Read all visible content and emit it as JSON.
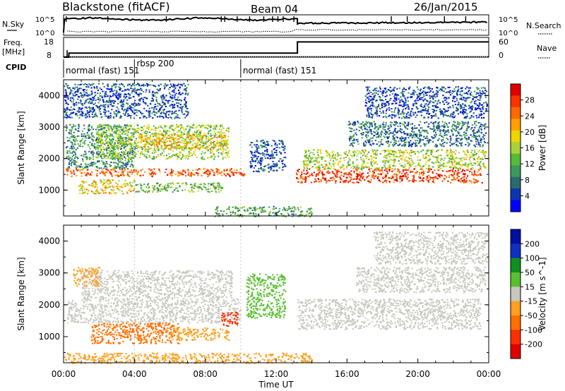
{
  "header": {
    "station": "Blackstone (fitACF)",
    "beam": "Beam 04",
    "date": "26/Jan/2015"
  },
  "panels": {
    "nsky": {
      "label": "N.Sky",
      "ticks_left": [
        "10^5",
        "10^0"
      ],
      "ticks_right": [
        "10^5",
        "10^0"
      ],
      "right_label": "N.Search"
    },
    "freq": {
      "label": "Freq.",
      "unit": "[MHz]",
      "ticks_left": [
        "18",
        "8"
      ],
      "ticks_right": [
        "60",
        "0"
      ],
      "right_label": "Nave",
      "freq_segments": [
        {
          "t0": 0.0,
          "t1": 0.3,
          "mhz": 8
        },
        {
          "t0": 0.3,
          "t1": 13.2,
          "mhz": 10.4
        },
        {
          "t0": 13.2,
          "t1": 24.0,
          "mhz": 17.0
        }
      ]
    },
    "cpid": {
      "label": "CPID",
      "segments": [
        {
          "start": 0.0,
          "label": "normal (fast) 151"
        },
        {
          "start": 4.0,
          "label": "rbsp 200"
        },
        {
          "start": 10.0,
          "label": "normal (fast) 151"
        }
      ]
    }
  },
  "time_axis": {
    "title": "Time UT",
    "ticks": [
      "00:00",
      "04:00",
      "08:00",
      "12:00",
      "16:00",
      "20:00",
      "00:00"
    ],
    "range_hours": [
      0,
      24
    ]
  },
  "chart_data": [
    {
      "type": "heatmap",
      "title": "",
      "xlabel": "Time UT",
      "ylabel": "Slant Range [km]",
      "xlim": [
        0,
        24
      ],
      "ylim": [
        180,
        4500
      ],
      "yticks": [
        "1000",
        "2000",
        "3000",
        "4000"
      ],
      "colorbar": {
        "label": "Power [dB]",
        "ticks": [
          "28",
          "24",
          "20",
          "16",
          "12",
          "8",
          "4"
        ],
        "range": [
          0,
          30
        ],
        "colors": [
          "#0000ff",
          "#0a36b0",
          "#2a6a70",
          "#3b9a5a",
          "#57bb39",
          "#a9d23a",
          "#f0d400",
          "#ffa000",
          "#ff6800",
          "#ff3200",
          "#e00000"
        ]
      },
      "bands": [
        {
          "t0": 0.1,
          "t1": 10.2,
          "r0": 1450,
          "r1": 1700,
          "v": 24
        },
        {
          "t0": 0.1,
          "t1": 4.0,
          "r0": 1700,
          "r1": 3100,
          "v": 9
        },
        {
          "t0": 1.8,
          "t1": 9.3,
          "r0": 2000,
          "r1": 3100,
          "v": 14
        },
        {
          "t0": 0.8,
          "t1": 4.0,
          "r0": 900,
          "r1": 1350,
          "v": 18
        },
        {
          "t0": 4.0,
          "t1": 9.0,
          "r0": 950,
          "r1": 1250,
          "v": 12
        },
        {
          "t0": 4.2,
          "t1": 9.2,
          "r0": 2300,
          "r1": 2800,
          "v": 19
        },
        {
          "t0": 0.0,
          "t1": 7.0,
          "r0": 3300,
          "r1": 4400,
          "v": 5
        },
        {
          "t0": 10.5,
          "t1": 12.5,
          "r0": 1600,
          "r1": 2600,
          "v": 5
        },
        {
          "t0": 13.1,
          "t1": 23.6,
          "r0": 1250,
          "r1": 1700,
          "v": 26
        },
        {
          "t0": 13.5,
          "t1": 23.8,
          "r0": 1700,
          "r1": 2300,
          "v": 15
        },
        {
          "t0": 16.0,
          "t1": 23.8,
          "r0": 2400,
          "r1": 3200,
          "v": 7
        },
        {
          "t0": 17.0,
          "t1": 23.9,
          "r0": 3300,
          "r1": 4300,
          "v": 5
        },
        {
          "t0": 8.5,
          "t1": 14.0,
          "r0": 180,
          "r1": 500,
          "v": 11
        }
      ]
    },
    {
      "type": "heatmap",
      "title": "",
      "xlabel": "Time UT",
      "ylabel": "Slant Range [km]",
      "xlim": [
        0,
        24
      ],
      "ylim": [
        180,
        4500
      ],
      "yticks": [
        "1000",
        "2000",
        "3000",
        "4000"
      ],
      "colorbar": {
        "label": "Velocity [m s^-1]",
        "ticks": [
          "200",
          "100",
          "50",
          "15",
          "-15",
          "-50",
          "-100",
          "-200"
        ],
        "range": [
          -250,
          250
        ],
        "colors": [
          "#e00000",
          "#ff3000",
          "#ff7000",
          "#ffa020",
          "#c8c8c0",
          "#58c030",
          "#109020",
          "#1030c0",
          "#0010a0"
        ]
      },
      "bands": [
        {
          "t0": 0.2,
          "t1": 10.0,
          "r0": 1450,
          "r1": 2200,
          "v": 0
        },
        {
          "t0": 1.0,
          "t1": 9.5,
          "r0": 2200,
          "r1": 3100,
          "v": 0
        },
        {
          "t0": 0.5,
          "t1": 2.0,
          "r0": 2600,
          "r1": 3200,
          "v": -60
        },
        {
          "t0": 1.5,
          "t1": 6.5,
          "r0": 800,
          "r1": 1450,
          "v": -120
        },
        {
          "t0": 6.0,
          "t1": 9.3,
          "r0": 900,
          "r1": 1300,
          "v": -60
        },
        {
          "t0": 8.8,
          "t1": 9.8,
          "r0": 1350,
          "r1": 1800,
          "v": -160
        },
        {
          "t0": 10.3,
          "t1": 12.5,
          "r0": 1600,
          "r1": 3000,
          "v": 60
        },
        {
          "t0": 13.2,
          "t1": 23.5,
          "r0": 1250,
          "r1": 2200,
          "v": 0
        },
        {
          "t0": 16.5,
          "t1": 23.8,
          "r0": 2400,
          "r1": 3200,
          "v": 0
        },
        {
          "t0": 17.5,
          "t1": 23.9,
          "r0": 3300,
          "r1": 4300,
          "v": 0
        },
        {
          "t0": 0.0,
          "t1": 14.0,
          "r0": 180,
          "r1": 500,
          "v": -60
        }
      ]
    }
  ]
}
